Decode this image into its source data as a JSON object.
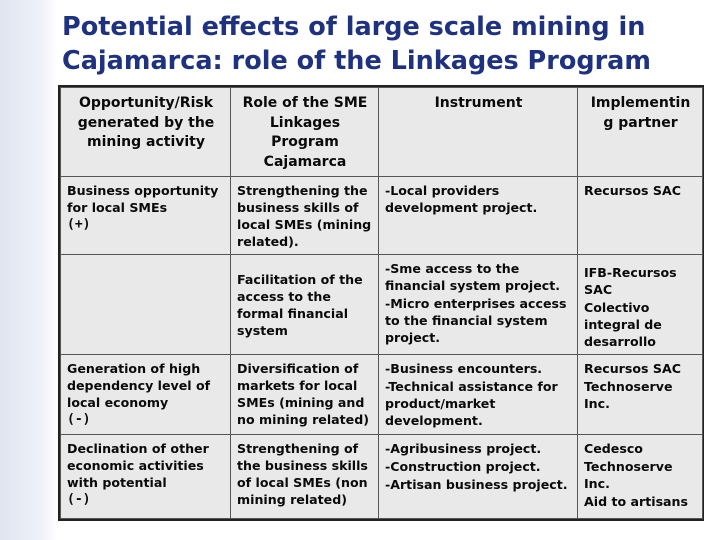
{
  "title": {
    "line1": "Potential effects of large scale mining in",
    "line2": "Cajamarca: role of the Linkages Program"
  },
  "table": {
    "headers": {
      "opportunity": "Opportunity/Risk generated by the mining activity",
      "role": "Role of the SME Linkages Program Cajamarca",
      "instrument": "Instrument",
      "partner": "Implementin g partner"
    },
    "rows": [
      {
        "opportunity": "Business opportunity for local SMEs",
        "opportunity_sign": "(+)",
        "role": "Strengthening the business skills of local SMEs (mining related).",
        "instrument": [
          "-Local providers development project."
        ],
        "partner": [
          "Recursos SAC"
        ]
      },
      {
        "opportunity": "",
        "opportunity_sign": "",
        "role": "Facilitation of the access to the formal financial system",
        "instrument": [
          "-Sme access to the financial system project.",
          "-Micro enterprises access to the financial system project."
        ],
        "partner": [
          "IFB-Recursos SAC",
          "Colectivo integral de desarrollo"
        ]
      },
      {
        "opportunity": "Generation of high dependency level of local economy",
        "opportunity_sign": "(-)",
        "role": "Diversification of markets for local SMEs (mining and no mining related)",
        "instrument": [
          "-Business encounters.",
          "-Technical assistance for product/market development."
        ],
        "partner": [
          "Recursos SAC",
          "Technoserve Inc."
        ]
      },
      {
        "opportunity": "Declination of other economic activities with potential",
        "opportunity_sign": "(-)",
        "role": "Strengthening of the business skills of local SMEs (non mining related)",
        "instrument": [
          "-Agribusiness project.",
          "-Construction project.",
          "-Artisan business project."
        ],
        "partner": [
          "Cedesco",
          "Technoserve Inc.",
          "Aid to artisans"
        ]
      }
    ]
  }
}
